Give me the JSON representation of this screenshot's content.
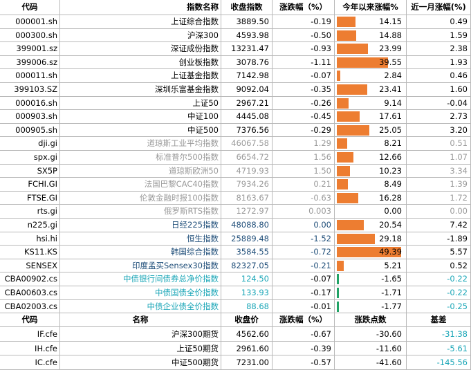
{
  "header": [
    "代码",
    "指数名称",
    "收盘指数",
    "涨跌幅（%）",
    "今年以来涨幅%",
    "近一月涨幅(%)"
  ],
  "colors": {
    "bar": "#ed7d31",
    "bar_negative": "#21a366",
    "gray_text": "#9a9a9a",
    "blue_text": "#1f4e79",
    "cyan_text": "#1aa6b7"
  },
  "index_rows": [
    {
      "code": "000001.sh",
      "name": "上证综合指数",
      "close": "3889.50",
      "chg": "-0.19",
      "ytd": "14.15",
      "ytd_value": 14.15,
      "m1": "0.49",
      "style": "black",
      "m1_style": "black"
    },
    {
      "code": "000300.sh",
      "name": "沪深300",
      "close": "4593.98",
      "chg": "-0.50",
      "ytd": "14.88",
      "ytd_value": 14.88,
      "m1": "1.59",
      "style": "black",
      "m1_style": "black"
    },
    {
      "code": "399001.sz",
      "name": "深证成份指数",
      "close": "13231.47",
      "chg": "-0.93",
      "ytd": "23.99",
      "ytd_value": 23.99,
      "m1": "2.38",
      "style": "black",
      "m1_style": "black"
    },
    {
      "code": "399006.sz",
      "name": "创业板指数",
      "close": "3078.76",
      "chg": "-1.11",
      "ytd": "39.55",
      "ytd_value": 39.55,
      "m1": "1.93",
      "style": "black",
      "m1_style": "black"
    },
    {
      "code": "000011.sh",
      "name": "上证基金指数",
      "close": "7142.98",
      "chg": "-0.07",
      "ytd": "2.84",
      "ytd_value": 2.84,
      "m1": "0.46",
      "style": "black",
      "m1_style": "black"
    },
    {
      "code": "399103.SZ",
      "name": "深圳乐富基金指数",
      "close": "9092.04",
      "chg": "-0.35",
      "ytd": "23.41",
      "ytd_value": 23.41,
      "m1": "1.60",
      "style": "black",
      "m1_style": "black"
    },
    {
      "code": "000016.sh",
      "name": "上证50",
      "close": "2967.21",
      "chg": "-0.26",
      "ytd": "9.14",
      "ytd_value": 9.14,
      "m1": "-0.04",
      "style": "black",
      "m1_style": "black"
    },
    {
      "code": "000903.sh",
      "name": "中证100",
      "close": "4445.08",
      "chg": "-0.45",
      "ytd": "17.61",
      "ytd_value": 17.61,
      "m1": "2.73",
      "style": "black",
      "m1_style": "black"
    },
    {
      "code": "000905.sh",
      "name": "中证500",
      "close": "7376.56",
      "chg": "-0.29",
      "ytd": "25.05",
      "ytd_value": 25.05,
      "m1": "3.20",
      "style": "black",
      "m1_style": "black"
    },
    {
      "code": "dji.gi",
      "name": "道琼斯工业平均指数",
      "close": "46067.58",
      "chg": "1.29",
      "ytd": "8.21",
      "ytd_value": 8.21,
      "m1": "0.51",
      "style": "gray",
      "m1_style": "gray"
    },
    {
      "code": "spx.gi",
      "name": "标准普尔500指数",
      "close": "6654.72",
      "chg": "1.56",
      "ytd": "12.66",
      "ytd_value": 12.66,
      "m1": "1.07",
      "style": "gray",
      "m1_style": "gray"
    },
    {
      "code": "SX5P",
      "name": "道琼斯欧洲50",
      "close": "4719.93",
      "chg": "1.50",
      "ytd": "10.23",
      "ytd_value": 10.23,
      "m1": "3.34",
      "style": "gray",
      "m1_style": "gray"
    },
    {
      "code": "FCHI.GI",
      "name": "法国巴黎CAC40指数",
      "close": "7934.26",
      "chg": "0.21",
      "ytd": "8.49",
      "ytd_value": 8.49,
      "m1": "1.39",
      "style": "gray",
      "m1_style": "gray"
    },
    {
      "code": "FTSE.GI",
      "name": "伦敦金融时报100指数",
      "close": "8163.67",
      "chg": "-0.63",
      "ytd": "16.28",
      "ytd_value": 16.28,
      "m1": "1.72",
      "style": "gray",
      "m1_style": "gray"
    },
    {
      "code": "rts.gi",
      "name": "俄罗斯RTS指数",
      "close": "1272.97",
      "chg": "0.003",
      "ytd": "0.00",
      "ytd_value": 0.0,
      "m1": "0.00",
      "style": "gray",
      "m1_style": "gray"
    },
    {
      "code": "n225.gi",
      "name": "日经225指数",
      "close": "48088.80",
      "chg": "0.00",
      "ytd": "20.54",
      "ytd_value": 20.54,
      "m1": "7.42",
      "style": "blue",
      "m1_style": "black"
    },
    {
      "code": "hsi.hi",
      "name": "恒生指数",
      "close": "25889.48",
      "chg": "-1.52",
      "ytd": "29.18",
      "ytd_value": 29.18,
      "m1": "-1.89",
      "style": "blue",
      "m1_style": "black"
    },
    {
      "code": "KS11.KS",
      "name": "韩国综合指数",
      "close": "3584.55",
      "chg": "-0.72",
      "ytd": "49.39",
      "ytd_value": 49.39,
      "m1": "5.57",
      "style": "blue",
      "m1_style": "black"
    },
    {
      "code": "SENSEX",
      "name": "印度孟买Sensex30指数",
      "close": "82327.05",
      "chg": "-0.21",
      "ytd": "5.21",
      "ytd_value": 5.21,
      "m1": "0.52",
      "style": "blue",
      "m1_style": "black"
    },
    {
      "code": "CBA00902.cs",
      "name": "中债银行间债券总净价指数",
      "close": "124.50",
      "chg": "-0.07",
      "ytd": "-1.65",
      "ytd_value": -1.65,
      "m1": "-0.22",
      "style": "cyan",
      "m1_style": "cyan"
    },
    {
      "code": "CBA00603.cs",
      "name": "中债国债全价指数",
      "close": "133.93",
      "chg": "-0.17",
      "ytd": "-1.71",
      "ytd_value": -1.71,
      "m1": "-0.22",
      "style": "cyan",
      "m1_style": "cyan"
    },
    {
      "code": "CBA02003.cs",
      "name": "中债企业债全价指数",
      "close": "88.68",
      "chg": "-0.01",
      "ytd": "-1.77",
      "ytd_value": -1.77,
      "m1": "-0.25",
      "style": "cyan",
      "m1_style": "cyan"
    }
  ],
  "futures_header": [
    "代码",
    "名称",
    "收盘价",
    "涨跌幅（%）",
    "涨跌点数",
    "基差"
  ],
  "futures_rows": [
    {
      "code": "IF.cfe",
      "name": "沪深300期货",
      "close": "4562.60",
      "chg": "-0.67",
      "pts": "-30.60",
      "basis": "-31.38"
    },
    {
      "code": "IH.cfe",
      "name": "上证50期货",
      "close": "2961.60",
      "chg": "-0.39",
      "pts": "-11.60",
      "basis": "-5.61"
    },
    {
      "code": "IC.cfe",
      "name": "中证500期货",
      "close": "7231.00",
      "chg": "-0.57",
      "pts": "-41.60",
      "basis": "-145.56"
    }
  ]
}
